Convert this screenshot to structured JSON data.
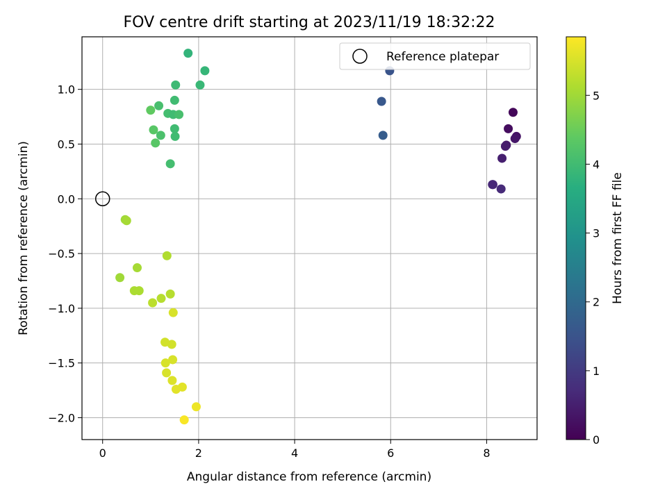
{
  "chart_data": {
    "type": "scatter",
    "title": "FOV centre drift starting at 2023/11/19 18:32:22",
    "xlabel": "Angular distance from reference (arcmin)",
    "ylabel": "Rotation from reference (arcmin)",
    "colorbar_label": "Hours from first FF file",
    "colormap": "viridis",
    "xlim": [
      -0.43,
      9.05
    ],
    "ylim": [
      -2.2,
      1.48
    ],
    "clim": [
      0,
      5.85
    ],
    "x_ticks": [
      0,
      2,
      4,
      6,
      8
    ],
    "y_ticks": [
      -2.0,
      -1.5,
      -1.0,
      -0.5,
      0.0,
      0.5,
      1.0
    ],
    "colorbar_ticks": [
      0,
      1,
      2,
      3,
      4,
      5
    ],
    "x_tick_labels": [
      "0",
      "2",
      "4",
      "6",
      "8"
    ],
    "y_tick_labels": [
      "−2.0",
      "−1.5",
      "−1.0",
      "−0.5",
      "0.0",
      "0.5",
      "1.0"
    ],
    "colorbar_tick_labels": [
      "0",
      "1",
      "2",
      "3",
      "4",
      "5"
    ],
    "grid": true,
    "legend_position": "top-right",
    "reference": {
      "name": "Reference platepar",
      "x": 0,
      "y": 0
    },
    "points": [
      {
        "x": 8.55,
        "y": 0.79,
        "c": 0.1
      },
      {
        "x": 8.45,
        "y": 0.64,
        "c": 0.2
      },
      {
        "x": 8.62,
        "y": 0.57,
        "c": 0.3
      },
      {
        "x": 8.59,
        "y": 0.55,
        "c": 0.35
      },
      {
        "x": 8.41,
        "y": 0.49,
        "c": 0.4
      },
      {
        "x": 8.39,
        "y": 0.48,
        "c": 0.45
      },
      {
        "x": 8.32,
        "y": 0.37,
        "c": 0.5
      },
      {
        "x": 8.13,
        "y": 0.13,
        "c": 0.6
      },
      {
        "x": 8.12,
        "y": 0.13,
        "c": 0.65
      },
      {
        "x": 8.3,
        "y": 0.09,
        "c": 0.7
      },
      {
        "x": 5.98,
        "y": 1.17,
        "c": 1.5
      },
      {
        "x": 5.81,
        "y": 0.89,
        "c": 1.6
      },
      {
        "x": 5.84,
        "y": 0.58,
        "c": 1.7
      },
      {
        "x": 1.78,
        "y": 1.33,
        "c": 3.8
      },
      {
        "x": 2.13,
        "y": 1.17,
        "c": 3.85
      },
      {
        "x": 2.03,
        "y": 1.04,
        "c": 3.9
      },
      {
        "x": 1.52,
        "y": 1.04,
        "c": 3.95
      },
      {
        "x": 1.5,
        "y": 0.9,
        "c": 4.0
      },
      {
        "x": 1.17,
        "y": 0.85,
        "c": 4.1
      },
      {
        "x": 1.0,
        "y": 0.81,
        "c": 4.4
      },
      {
        "x": 1.36,
        "y": 0.78,
        "c": 4.05
      },
      {
        "x": 1.47,
        "y": 0.77,
        "c": 4.0
      },
      {
        "x": 1.59,
        "y": 0.77,
        "c": 4.1
      },
      {
        "x": 1.06,
        "y": 0.63,
        "c": 4.3
      },
      {
        "x": 1.5,
        "y": 0.64,
        "c": 4.0
      },
      {
        "x": 1.21,
        "y": 0.58,
        "c": 4.15
      },
      {
        "x": 1.51,
        "y": 0.57,
        "c": 4.0
      },
      {
        "x": 1.1,
        "y": 0.51,
        "c": 4.3
      },
      {
        "x": 1.41,
        "y": 0.32,
        "c": 4.05
      },
      {
        "x": 0.47,
        "y": -0.19,
        "c": 5.0
      },
      {
        "x": 0.5,
        "y": -0.2,
        "c": 5.05
      },
      {
        "x": 1.34,
        "y": -0.52,
        "c": 5.15
      },
      {
        "x": 0.72,
        "y": -0.63,
        "c": 5.05
      },
      {
        "x": 0.36,
        "y": -0.72,
        "c": 5.0
      },
      {
        "x": 0.66,
        "y": -0.84,
        "c": 5.1
      },
      {
        "x": 0.76,
        "y": -0.84,
        "c": 5.1
      },
      {
        "x": 1.41,
        "y": -0.87,
        "c": 5.2
      },
      {
        "x": 1.22,
        "y": -0.91,
        "c": 5.2
      },
      {
        "x": 1.04,
        "y": -0.95,
        "c": 5.25
      },
      {
        "x": 1.47,
        "y": -1.04,
        "c": 5.5
      },
      {
        "x": 1.3,
        "y": -1.31,
        "c": 5.45
      },
      {
        "x": 1.44,
        "y": -1.33,
        "c": 5.45
      },
      {
        "x": 1.46,
        "y": -1.47,
        "c": 5.5
      },
      {
        "x": 1.31,
        "y": -1.5,
        "c": 5.5
      },
      {
        "x": 1.33,
        "y": -1.59,
        "c": 5.5
      },
      {
        "x": 1.45,
        "y": -1.66,
        "c": 5.55
      },
      {
        "x": 1.66,
        "y": -1.72,
        "c": 5.6
      },
      {
        "x": 1.53,
        "y": -1.74,
        "c": 5.6
      },
      {
        "x": 1.95,
        "y": -1.9,
        "c": 5.7
      },
      {
        "x": 1.7,
        "y": -2.02,
        "c": 5.8
      }
    ]
  }
}
